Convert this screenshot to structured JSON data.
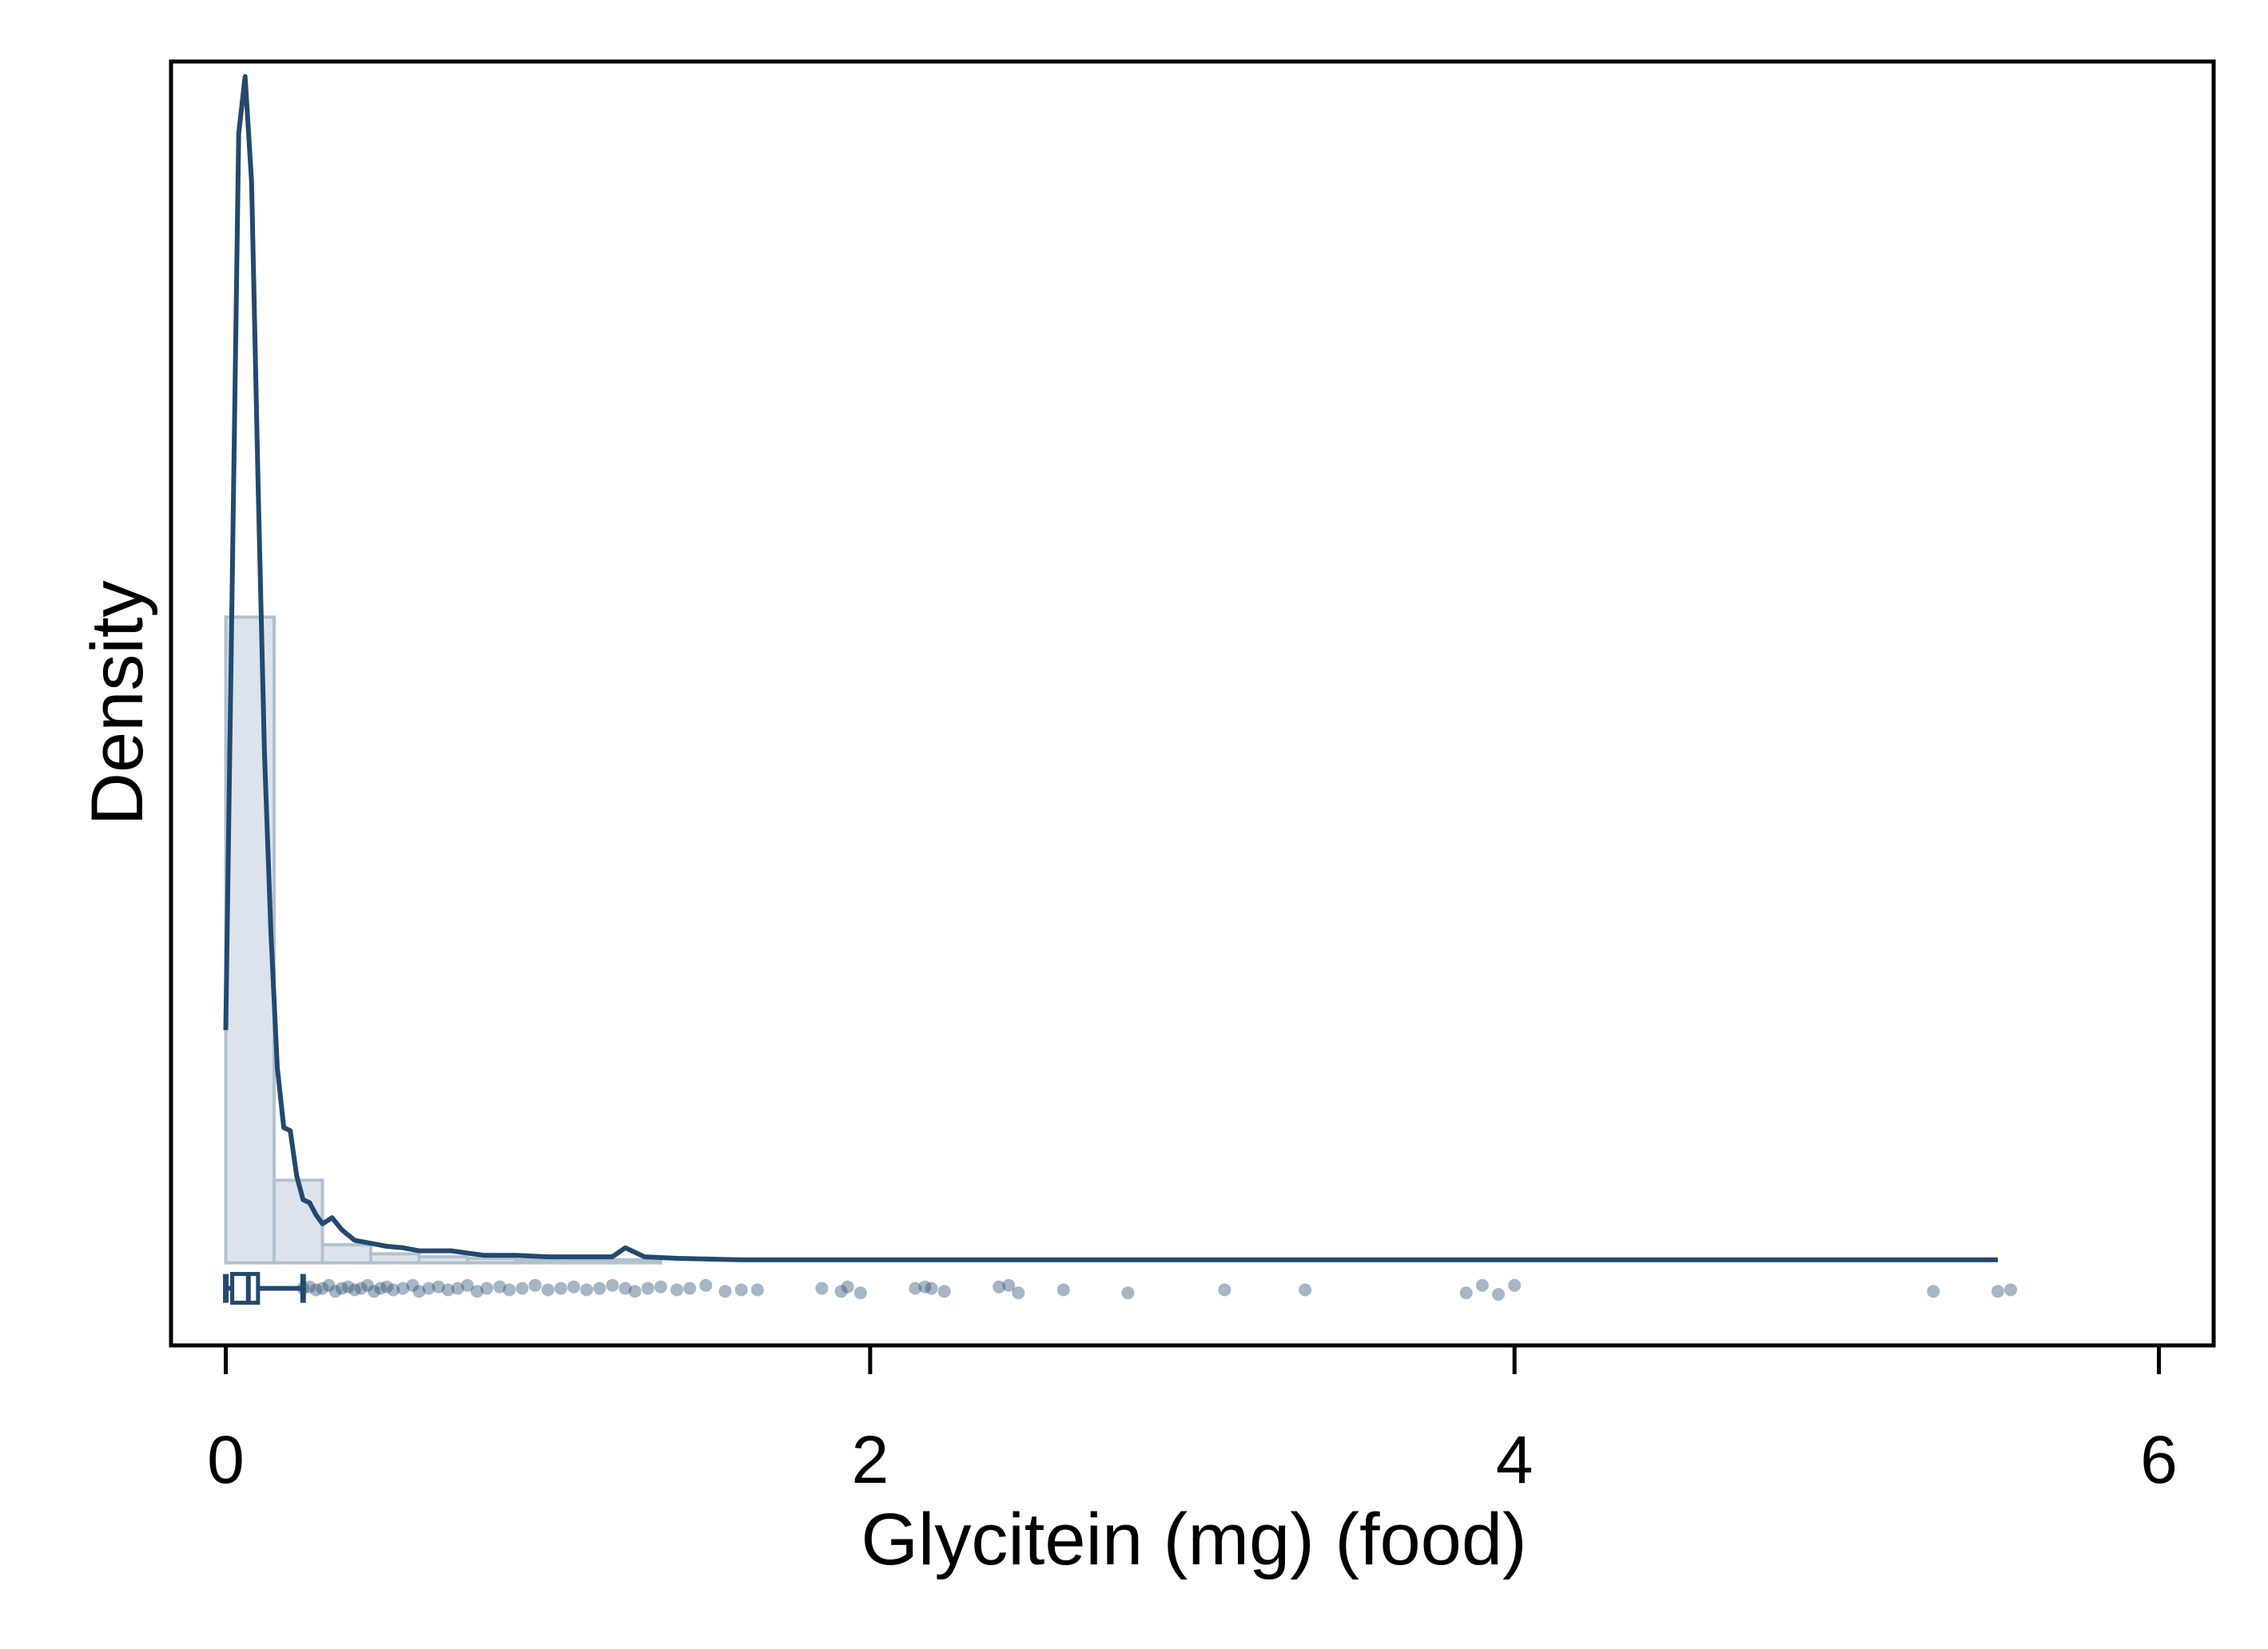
{
  "chart_data": {
    "type": "area",
    "title": "",
    "xlabel": "Glycitein (mg) (food)",
    "ylabel": "Density",
    "xlim": [
      -0.17,
      6.17
    ],
    "ylim": [
      -0.55,
      8.0
    ],
    "xticks": [
      {
        "value": 0,
        "label": "0"
      },
      {
        "value": 2,
        "label": "2"
      },
      {
        "value": 4,
        "label": "4"
      },
      {
        "value": 6,
        "label": "6"
      }
    ],
    "y_tick_labels_shown": false,
    "grid": false,
    "legend": "none",
    "colors": {
      "line": "#24496e",
      "hist_fill": "#dce3ec",
      "hist_stroke": "#b3c1cf",
      "point": "#24496e",
      "frame": "#000000"
    },
    "histogram": {
      "bin_width": 0.15,
      "bins": [
        {
          "x0": 0.0,
          "x1": 0.15,
          "density": 4.3
        },
        {
          "x0": 0.15,
          "x1": 0.3,
          "density": 0.55
        },
        {
          "x0": 0.3,
          "x1": 0.45,
          "density": 0.12
        },
        {
          "x0": 0.45,
          "x1": 0.6,
          "density": 0.06
        },
        {
          "x0": 0.6,
          "x1": 0.75,
          "density": 0.04
        },
        {
          "x0": 0.75,
          "x1": 0.9,
          "density": 0.03
        },
        {
          "x0": 0.9,
          "x1": 1.05,
          "density": 0.02
        },
        {
          "x0": 1.05,
          "x1": 1.2,
          "density": 0.02
        },
        {
          "x0": 1.2,
          "x1": 1.35,
          "density": 0.02
        }
      ]
    },
    "series": [
      {
        "type": "line",
        "x": [
          0.0,
          0.04,
          0.06,
          0.08,
          0.1,
          0.12,
          0.14,
          0.16,
          0.18,
          0.2,
          0.22,
          0.24,
          0.26,
          0.28,
          0.3,
          0.33,
          0.36,
          0.4,
          0.45,
          0.5,
          0.55,
          0.6,
          0.7,
          0.8,
          0.9,
          1.0,
          1.1,
          1.2,
          1.24,
          1.3,
          1.4,
          1.6,
          1.8,
          2.0,
          2.2,
          2.4,
          2.6,
          3.0,
          3.5,
          4.0,
          4.5,
          5.0,
          5.5
        ],
        "y": [
          1.55,
          7.52,
          7.9,
          7.2,
          5.2,
          3.4,
          2.2,
          1.3,
          0.9,
          0.88,
          0.58,
          0.42,
          0.4,
          0.32,
          0.26,
          0.3,
          0.22,
          0.15,
          0.13,
          0.11,
          0.1,
          0.08,
          0.08,
          0.05,
          0.05,
          0.04,
          0.04,
          0.04,
          0.1,
          0.04,
          0.03,
          0.02,
          0.02,
          0.02,
          0.02,
          0.02,
          0.02,
          0.02,
          0.02,
          0.02,
          0.02,
          0.02,
          0.02
        ]
      }
    ],
    "boxplot": {
      "y": -0.17,
      "whisker_low": 0.0,
      "q1": 0.02,
      "median": 0.07,
      "q3": 0.1,
      "whisker_high": 0.24
    },
    "outlier_points": [
      {
        "x": 0.24,
        "y": -0.17
      },
      {
        "x": 0.26,
        "y": -0.16
      },
      {
        "x": 0.28,
        "y": -0.18
      },
      {
        "x": 0.3,
        "y": -0.17
      },
      {
        "x": 0.32,
        "y": -0.15
      },
      {
        "x": 0.34,
        "y": -0.19
      },
      {
        "x": 0.36,
        "y": -0.17
      },
      {
        "x": 0.38,
        "y": -0.16
      },
      {
        "x": 0.4,
        "y": -0.18
      },
      {
        "x": 0.42,
        "y": -0.17
      },
      {
        "x": 0.44,
        "y": -0.15
      },
      {
        "x": 0.46,
        "y": -0.19
      },
      {
        "x": 0.48,
        "y": -0.17
      },
      {
        "x": 0.5,
        "y": -0.16
      },
      {
        "x": 0.52,
        "y": -0.18
      },
      {
        "x": 0.55,
        "y": -0.17
      },
      {
        "x": 0.58,
        "y": -0.15
      },
      {
        "x": 0.6,
        "y": -0.19
      },
      {
        "x": 0.63,
        "y": -0.17
      },
      {
        "x": 0.66,
        "y": -0.16
      },
      {
        "x": 0.69,
        "y": -0.18
      },
      {
        "x": 0.72,
        "y": -0.17
      },
      {
        "x": 0.75,
        "y": -0.15
      },
      {
        "x": 0.78,
        "y": -0.19
      },
      {
        "x": 0.81,
        "y": -0.17
      },
      {
        "x": 0.85,
        "y": -0.16
      },
      {
        "x": 0.88,
        "y": -0.18
      },
      {
        "x": 0.92,
        "y": -0.17
      },
      {
        "x": 0.96,
        "y": -0.15
      },
      {
        "x": 1.0,
        "y": -0.18
      },
      {
        "x": 1.04,
        "y": -0.17
      },
      {
        "x": 1.08,
        "y": -0.16
      },
      {
        "x": 1.12,
        "y": -0.18
      },
      {
        "x": 1.16,
        "y": -0.17
      },
      {
        "x": 1.2,
        "y": -0.15
      },
      {
        "x": 1.24,
        "y": -0.17
      },
      {
        "x": 1.27,
        "y": -0.19
      },
      {
        "x": 1.31,
        "y": -0.17
      },
      {
        "x": 1.35,
        "y": -0.16
      },
      {
        "x": 1.4,
        "y": -0.18
      },
      {
        "x": 1.44,
        "y": -0.17
      },
      {
        "x": 1.49,
        "y": -0.15
      },
      {
        "x": 1.55,
        "y": -0.19
      },
      {
        "x": 1.6,
        "y": -0.18
      },
      {
        "x": 1.65,
        "y": -0.18
      },
      {
        "x": 1.85,
        "y": -0.17
      },
      {
        "x": 1.91,
        "y": -0.19
      },
      {
        "x": 1.93,
        "y": -0.16
      },
      {
        "x": 1.97,
        "y": -0.2
      },
      {
        "x": 2.14,
        "y": -0.17
      },
      {
        "x": 2.17,
        "y": -0.16
      },
      {
        "x": 2.19,
        "y": -0.17
      },
      {
        "x": 2.23,
        "y": -0.19
      },
      {
        "x": 2.4,
        "y": -0.16
      },
      {
        "x": 2.43,
        "y": -0.15
      },
      {
        "x": 2.46,
        "y": -0.2
      },
      {
        "x": 2.6,
        "y": -0.18
      },
      {
        "x": 2.8,
        "y": -0.2
      },
      {
        "x": 3.1,
        "y": -0.18
      },
      {
        "x": 3.35,
        "y": -0.18
      },
      {
        "x": 3.85,
        "y": -0.2
      },
      {
        "x": 3.9,
        "y": -0.15
      },
      {
        "x": 3.95,
        "y": -0.21
      },
      {
        "x": 4.0,
        "y": -0.15
      },
      {
        "x": 5.3,
        "y": -0.19
      },
      {
        "x": 5.5,
        "y": -0.19
      },
      {
        "x": 5.54,
        "y": -0.18
      }
    ]
  }
}
